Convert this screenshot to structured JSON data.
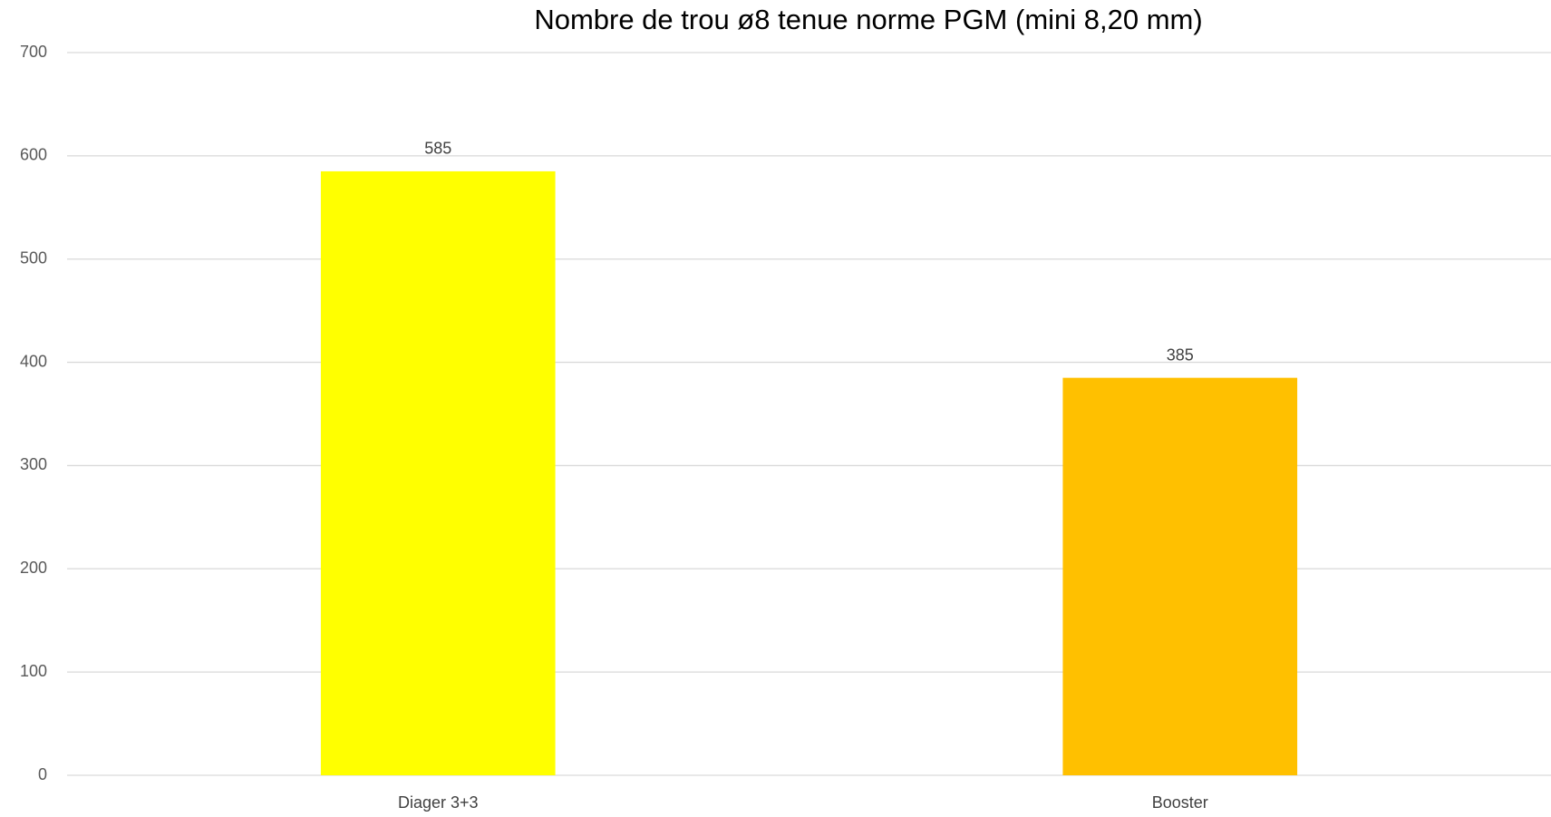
{
  "chart_data": {
    "type": "bar",
    "title": "Nombre de trou ø8 tenue norme PGM (mini 8,20 mm)",
    "categories": [
      "Diager 3+3",
      "Booster"
    ],
    "values": [
      585,
      385
    ],
    "colors": [
      "#ffff00",
      "#ffc000"
    ],
    "data_labels": true,
    "ylim": [
      0,
      700
    ],
    "yticks": [
      0,
      100,
      200,
      300,
      400,
      500,
      600,
      700
    ],
    "grid": true
  }
}
